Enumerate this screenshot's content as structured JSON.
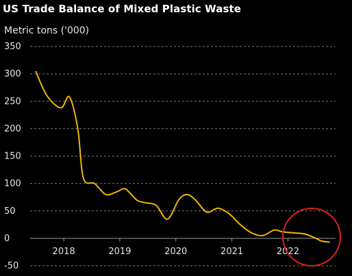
{
  "chart": {
    "title": "US Trade Balance of Mixed Plastic Waste",
    "ylabel": "Metric tons ('000)"
  },
  "chart_data": {
    "type": "line",
    "title": "US Trade Balance of Mixed Plastic Waste",
    "xlabel": "",
    "ylabel": "Metric tons ('000)",
    "ylim": [
      -50,
      350
    ],
    "yticks": [
      -50,
      0,
      50,
      100,
      150,
      200,
      250,
      300,
      350
    ],
    "xlim": [
      2017.4,
      2022.85
    ],
    "xticks": [
      2018,
      2019,
      2020,
      2021,
      2022
    ],
    "grid": true,
    "line_color": "#f2b705",
    "annotation": "red circle highlighting 2022 values",
    "series": [
      {
        "x": [
          2017.5,
          2017.7,
          2017.95,
          2018.1,
          2018.25,
          2018.35,
          2018.55,
          2018.75,
          2018.95,
          2019.1,
          2019.3,
          2019.45,
          2019.65,
          2019.85,
          2020.05,
          2020.2,
          2020.35,
          2020.55,
          2020.75,
          2020.95,
          2021.15,
          2021.35,
          2021.55,
          2021.75,
          2021.9,
          2022.1,
          2022.3,
          2022.5,
          2022.6,
          2022.75
        ],
        "y": [
          305,
          260,
          238,
          258,
          200,
          110,
          100,
          80,
          85,
          90,
          70,
          65,
          60,
          35,
          70,
          80,
          70,
          48,
          55,
          45,
          25,
          10,
          5,
          15,
          12,
          10,
          8,
          0,
          -5,
          -7
        ]
      }
    ]
  }
}
